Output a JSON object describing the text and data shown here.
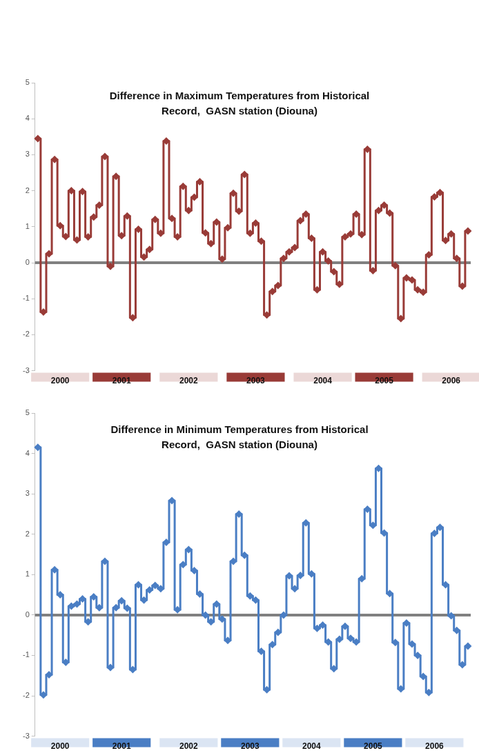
{
  "chart_data": [
    {
      "type": "step",
      "title": "Difference in Maximum Temperatures from Historical Record,  GASN station (Diouna)",
      "categories": [
        null,
        null,
        null,
        null,
        "2000",
        null,
        null,
        null,
        null,
        null,
        null,
        null,
        null,
        null,
        null,
        "2001",
        null,
        null,
        null,
        null,
        null,
        null,
        null,
        null,
        null,
        null,
        null,
        "2002",
        null,
        null,
        null,
        null,
        null,
        null,
        null,
        null,
        null,
        null,
        null,
        "2003",
        null,
        null,
        null,
        null,
        null,
        null,
        null,
        null,
        null,
        null,
        null,
        "2004",
        null,
        null,
        null,
        null,
        null,
        null,
        null,
        null,
        null,
        null,
        "2005",
        null,
        null,
        null,
        null,
        null,
        null,
        null,
        null,
        null,
        null,
        null,
        "2006",
        null,
        null,
        null
      ],
      "series": [
        {
          "color": "#993b37",
          "values": [
            3.45,
            -1.37,
            0.25,
            2.87,
            1.03,
            0.73,
            2.0,
            0.63,
            1.98,
            0.72,
            1.27,
            1.6,
            2.95,
            -0.1,
            2.4,
            0.75,
            1.3,
            -1.53,
            0.93,
            0.16,
            0.37,
            1.2,
            0.82,
            3.38,
            1.23,
            0.72,
            2.12,
            1.45,
            1.82,
            2.25,
            0.83,
            0.53,
            1.13,
            0.1,
            0.97,
            1.93,
            1.43,
            2.45,
            0.82,
            1.1,
            0.6,
            -1.45,
            -0.8,
            -0.63,
            0.12,
            0.3,
            0.42,
            1.17,
            1.35,
            0.68,
            -0.75,
            0.3,
            0.05,
            -0.25,
            -0.6,
            0.72,
            0.8,
            1.35,
            0.78,
            3.15,
            -0.22,
            1.45,
            1.6,
            1.38,
            -0.08,
            -1.55,
            -0.42,
            -0.48,
            -0.75,
            -0.82,
            0.22,
            1.83,
            1.95,
            0.62,
            0.8,
            0.12,
            -0.65,
            0.88
          ]
        }
      ],
      "ylim": [
        -3,
        5
      ],
      "yticks": [
        -3,
        -2,
        -1,
        0,
        1,
        2,
        3,
        4,
        5
      ],
      "ref_lines": [
        {
          "axis": "y",
          "value": 0,
          "color": "#808080"
        }
      ],
      "marker": "diamond"
    },
    {
      "type": "step",
      "title": "Difference in Minimum Temperatures from Historical Record,  GASN station (Diouna)",
      "categories": [
        null,
        null,
        null,
        null,
        "2000",
        null,
        null,
        null,
        null,
        null,
        null,
        null,
        null,
        null,
        null,
        "2001",
        null,
        null,
        null,
        null,
        null,
        null,
        null,
        null,
        null,
        null,
        null,
        "2002",
        null,
        null,
        null,
        null,
        null,
        null,
        null,
        null,
        null,
        null,
        "2003",
        null,
        null,
        null,
        null,
        null,
        null,
        null,
        null,
        null,
        null,
        "2004",
        null,
        null,
        null,
        null,
        null,
        null,
        null,
        null,
        null,
        null,
        "2005",
        null,
        null,
        null,
        null,
        null,
        null,
        null,
        null,
        null,
        null,
        "2006",
        null,
        null,
        null,
        null,
        null,
        null
      ],
      "series": [
        {
          "color": "#4a7ec4",
          "values": [
            4.15,
            -1.98,
            -1.48,
            1.12,
            0.5,
            -1.17,
            0.22,
            0.27,
            0.4,
            -0.17,
            0.45,
            0.18,
            1.33,
            -1.3,
            0.18,
            0.35,
            0.17,
            -1.35,
            0.75,
            0.37,
            0.62,
            0.73,
            0.65,
            1.8,
            2.83,
            0.13,
            1.25,
            1.62,
            1.1,
            0.52,
            0.0,
            -0.17,
            0.27,
            -0.1,
            -0.63,
            1.33,
            2.5,
            1.48,
            0.47,
            0.37,
            -0.9,
            -1.85,
            -0.73,
            -0.43,
            0.0,
            0.97,
            0.65,
            0.98,
            2.28,
            1.02,
            -0.33,
            -0.25,
            -0.67,
            -1.33,
            -0.6,
            -0.28,
            -0.58,
            -0.67,
            0.9,
            2.62,
            2.22,
            3.63,
            2.03,
            0.53,
            -0.68,
            -1.83,
            -0.2,
            -0.72,
            -1.0,
            -1.52,
            -1.92,
            2.02,
            2.17,
            0.75,
            -0.02,
            -0.38,
            -1.23,
            -0.77
          ]
        }
      ],
      "ylim": [
        -3,
        5
      ],
      "yticks": [
        -3,
        -2,
        -1,
        0,
        1,
        2,
        3,
        4,
        5
      ],
      "ref_lines": [
        {
          "axis": "y",
          "value": 0,
          "color": "#808080"
        }
      ],
      "marker": "diamond"
    }
  ]
}
